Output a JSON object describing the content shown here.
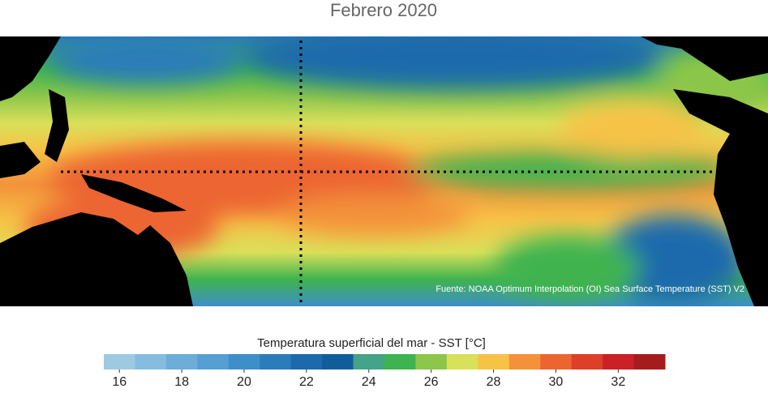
{
  "header": {
    "title": "Febrero 2020"
  },
  "map": {
    "source": "Fuente: NOAA Optimum Interpolation (OI) Sea Surface Temperature (SST) V2"
  },
  "colorbar": {
    "label": "Temperatura superficial del mar - SST  [°C]",
    "lim": [
      15.5,
      33.5
    ],
    "ticks": [
      16,
      18,
      20,
      22,
      24,
      26,
      28,
      30,
      32
    ],
    "colors": [
      "#9ecae1",
      "#86bddf",
      "#6dadd8",
      "#569fd2",
      "#3e8fc9",
      "#2b7cbb",
      "#1c6aac",
      "#135c9c",
      "#44a388",
      "#3fb34f",
      "#8cc64a",
      "#d9e05a",
      "#f7c347",
      "#f3923a",
      "#ec6530",
      "#dd3f28",
      "#cc2027",
      "#a51c1f"
    ]
  }
}
